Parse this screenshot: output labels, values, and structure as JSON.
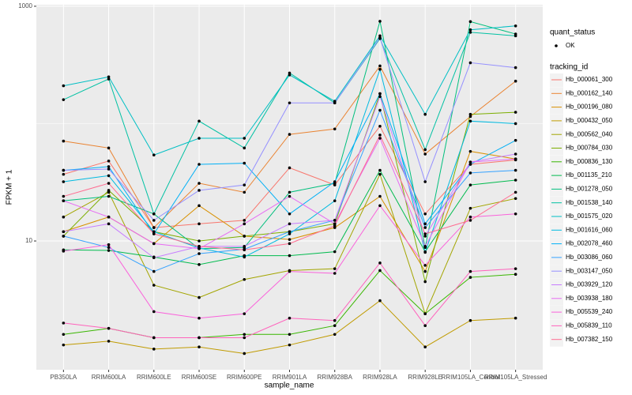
{
  "chart_data": {
    "type": "line",
    "x_label": "sample_name",
    "y_label": "FPKM + 1",
    "log_y": true,
    "grid": true,
    "categories": [
      "PB350LA",
      "RRIM600LA",
      "RRIM600LE",
      "RRIM600SE",
      "RRIM600PE",
      "RRIM901LA",
      "RRIM928BA",
      "RRIM928LA",
      "RRIM928LE",
      "RRIM105LA_Control",
      "RRIM105LA_Stressed"
    ],
    "ylim": [
      0.8,
      1030
    ],
    "yticks": [
      10,
      1000
    ],
    "minor_yticks": [
      100
    ],
    "point_legend_title": "quant_status",
    "point_legend_label": "OK",
    "point_color": "#000000",
    "legend_title": "tracking_id",
    "series": [
      {
        "name": "Hb_000061_300",
        "color": "#F8766D",
        "values": [
          37,
          48,
          13,
          14,
          15,
          42,
          30,
          95,
          17,
          45,
          49
        ]
      },
      {
        "name": "Hb_000162_140",
        "color": "#EA8331",
        "values": [
          71,
          62,
          13,
          31,
          26,
          81,
          90,
          310,
          55,
          115,
          230
        ]
      },
      {
        "name": "Hb_000196_080",
        "color": "#D89000",
        "values": [
          12,
          16,
          9.5,
          20,
          11,
          10.3,
          13,
          24,
          5.5,
          58,
          50
        ]
      },
      {
        "name": "Hb_000432_050",
        "color": "#C09B00",
        "values": [
          1.3,
          1.4,
          1.2,
          1.25,
          1.1,
          1.3,
          1.6,
          3.1,
          1.25,
          2.1,
          2.2
        ]
      },
      {
        "name": "Hb_000562_040",
        "color": "#A3A500",
        "values": [
          16,
          26,
          4.2,
          3.3,
          4.7,
          5.6,
          5.8,
          37,
          2.4,
          19,
          23
        ]
      },
      {
        "name": "Hb_000784_030",
        "color": "#7CAE00",
        "values": [
          11,
          27,
          12,
          10,
          11,
          12,
          14,
          180,
          4.5,
          120,
          125
        ]
      },
      {
        "name": "Hb_000836_130",
        "color": "#39B600",
        "values": [
          1.6,
          1.8,
          1.5,
          1.5,
          1.6,
          1.6,
          1.9,
          5.6,
          2.4,
          4.9,
          5.2
        ]
      },
      {
        "name": "Hb_001135_210",
        "color": "#00BB4E",
        "values": [
          8.4,
          8.3,
          7.3,
          6.3,
          7.5,
          7.5,
          8.1,
          40,
          8.1,
          30,
          33
        ]
      },
      {
        "name": "Hb_001278_050",
        "color": "#00BF7D",
        "values": [
          22,
          24,
          17,
          8.6,
          8.8,
          26,
          31,
          745,
          8.8,
          740,
          580
        ]
      },
      {
        "name": "Hb_001538_140",
        "color": "#00C1A3",
        "values": [
          160,
          240,
          17,
          105,
          62,
          270,
          150,
          530,
          60,
          600,
          560
        ]
      },
      {
        "name": "Hb_001575_020",
        "color": "#00BFC4",
        "values": [
          210,
          250,
          54,
          75,
          75,
          260,
          155,
          560,
          120,
          630,
          680
        ]
      },
      {
        "name": "Hb_001616_060",
        "color": "#00BAE0",
        "values": [
          32,
          36,
          12,
          8.7,
          7.3,
          11.5,
          22,
          290,
          8,
          105,
          100
        ]
      },
      {
        "name": "Hb_002078_460",
        "color": "#00B0F6",
        "values": [
          40,
          43,
          11.5,
          45,
          46,
          17,
          32,
          180,
          14,
          45,
          72
        ]
      },
      {
        "name": "Hb_003086_060",
        "color": "#35A2FF",
        "values": [
          11,
          8.8,
          5.5,
          7.8,
          8.5,
          12,
          15,
          130,
          13,
          38,
          40
        ]
      },
      {
        "name": "Hb_003147_050",
        "color": "#9590FF",
        "values": [
          40,
          41,
          15,
          27,
          30,
          150,
          150,
          540,
          32,
          330,
          300
        ]
      },
      {
        "name": "Hb_003929_120",
        "color": "#C77CFF",
        "values": [
          12,
          14,
          7.2,
          9,
          9,
          14,
          15,
          170,
          11,
          47,
          55
        ]
      },
      {
        "name": "Hb_003938_180",
        "color": "#E76BF3",
        "values": [
          22,
          16,
          9.5,
          8.6,
          14,
          24,
          14,
          75,
          9,
          47,
          50
        ]
      },
      {
        "name": "Hb_005539_240",
        "color": "#FA62DB",
        "values": [
          8.2,
          9.3,
          2.5,
          2.2,
          2.4,
          5.5,
          5.3,
          20,
          6.2,
          16,
          17
        ]
      },
      {
        "name": "Hb_005839_110",
        "color": "#FF62BC",
        "values": [
          2.0,
          1.8,
          1.5,
          1.5,
          1.5,
          2.2,
          2.1,
          6.5,
          1.9,
          5.5,
          5.8
        ]
      },
      {
        "name": "Hb_007382_150",
        "color": "#FF6C91",
        "values": [
          24,
          31,
          11.5,
          9,
          8.4,
          9.5,
          13.5,
          80,
          11.5,
          15,
          26
        ]
      }
    ]
  }
}
